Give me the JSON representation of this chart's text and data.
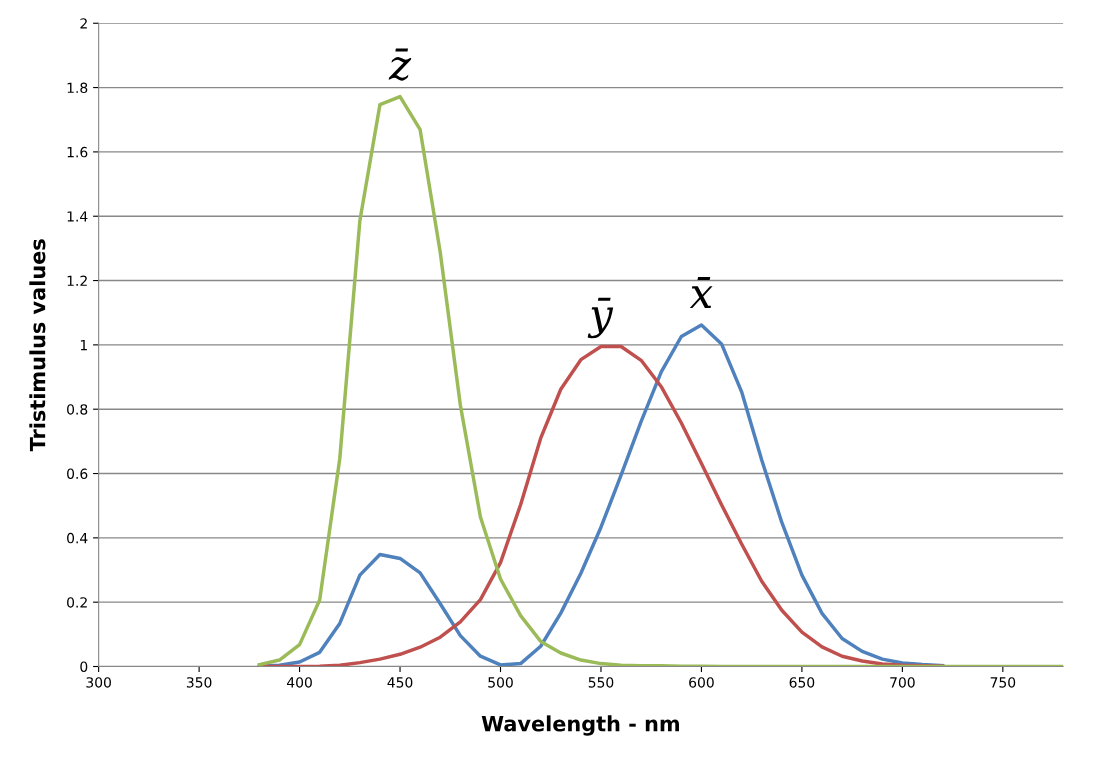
{
  "chart_data": {
    "type": "line",
    "xlabel": "Wavelength - nm",
    "ylabel": "Tristimulus values",
    "xlim": [
      300,
      780
    ],
    "xticks": [
      300,
      350,
      400,
      450,
      500,
      550,
      600,
      650,
      700,
      750
    ],
    "ylim": [
      0,
      2
    ],
    "yticks": [
      0,
      0.2,
      0.4,
      0.6,
      0.8,
      1,
      1.2,
      1.4,
      1.6,
      1.8,
      2
    ],
    "grid": "y",
    "legend": false,
    "marker": "none",
    "line_style": "solid",
    "x": [
      380,
      390,
      400,
      410,
      420,
      430,
      440,
      450,
      460,
      470,
      480,
      490,
      500,
      510,
      520,
      530,
      540,
      550,
      560,
      570,
      580,
      590,
      600,
      610,
      620,
      630,
      640,
      650,
      660,
      670,
      680,
      690,
      700,
      710,
      720,
      730,
      740,
      750,
      760,
      770,
      780
    ],
    "series": [
      {
        "name": "x̄",
        "color": "#4f81bd",
        "values": [
          0.001,
          0.004,
          0.014,
          0.044,
          0.134,
          0.284,
          0.348,
          0.336,
          0.291,
          0.195,
          0.096,
          0.032,
          0.005,
          0.009,
          0.063,
          0.166,
          0.29,
          0.433,
          0.595,
          0.762,
          0.916,
          1.026,
          1.062,
          1.003,
          0.854,
          0.642,
          0.448,
          0.284,
          0.165,
          0.087,
          0.047,
          0.023,
          0.011,
          0.006,
          0.003,
          null,
          null,
          null,
          null,
          null,
          null
        ]
      },
      {
        "name": "ȳ",
        "color": "#c0504d",
        "values": [
          0,
          0,
          0,
          0.001,
          0.004,
          0.012,
          0.023,
          0.038,
          0.06,
          0.091,
          0.139,
          0.208,
          0.323,
          0.503,
          0.71,
          0.862,
          0.954,
          0.995,
          0.995,
          0.952,
          0.87,
          0.757,
          0.631,
          0.503,
          0.381,
          0.265,
          0.175,
          0.107,
          0.061,
          0.032,
          0.017,
          0.008,
          0.004,
          0.002,
          0.001,
          null,
          null,
          null,
          null,
          null,
          null
        ]
      },
      {
        "name": "z̄",
        "color": "#9bbb59",
        "values": [
          0.006,
          0.02,
          0.068,
          0.207,
          0.646,
          1.386,
          1.747,
          1.772,
          1.669,
          1.288,
          0.813,
          0.465,
          0.272,
          0.158,
          0.078,
          0.042,
          0.02,
          0.009,
          0.004,
          0.002,
          0.002,
          0.001,
          0.001,
          0,
          0,
          0,
          0,
          0,
          0,
          0,
          0,
          0,
          0,
          0,
          0,
          0,
          0,
          0,
          0,
          0,
          0
        ]
      }
    ]
  }
}
